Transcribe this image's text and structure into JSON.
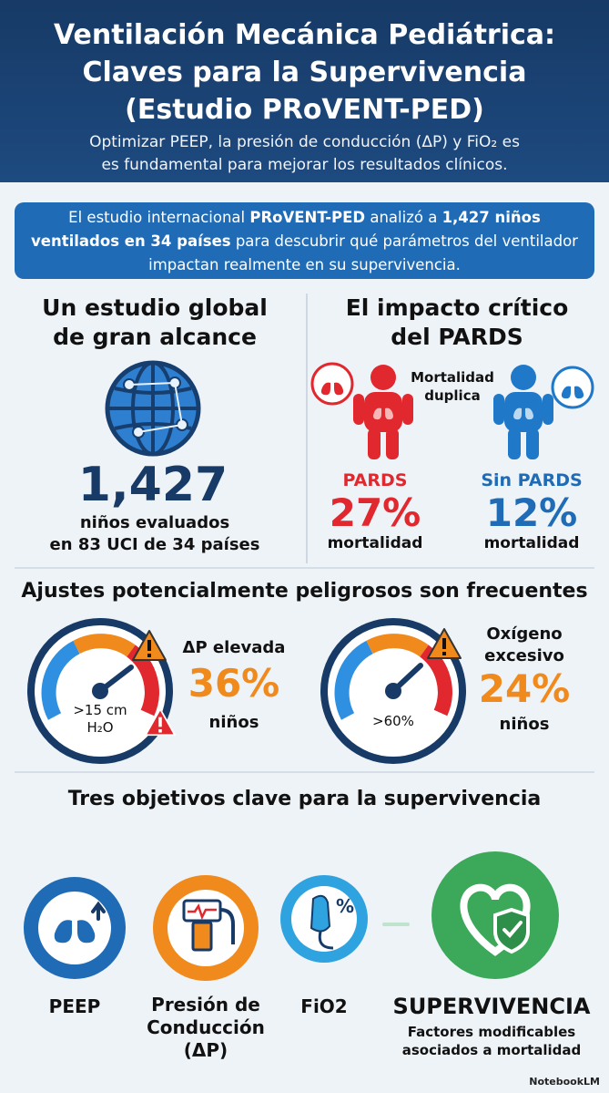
{
  "header": {
    "title_line1": "Ventilación Mecánica Pediátrica:",
    "title_line2": "Claves para la Supervivencia",
    "title_line3": "(Estudio PRoVENT-PED)",
    "subtitle_line1": "Optimizar PEEP, la presión de conducción (ΔP) y FiO₂ es",
    "subtitle_line2": "es fundamental para mejorar los resultados clínicos."
  },
  "intro": {
    "part1": "El estudio internacional ",
    "bold1": "PRoVENT-PED",
    "part2": " analizó a ",
    "bold2": "1,427 niños ventilados en 34 países",
    "part3": " para descubrir qué parámetros del ventilador impactan realmente en su supervivencia."
  },
  "global": {
    "title_line1": "Un estudio global",
    "title_line2": "de gran alcance",
    "number": "1,427",
    "caption_line1": "niños evaluados",
    "caption_line2": "en 83 UCI de 34 países"
  },
  "pards": {
    "title_line1": "El impacto crítico",
    "title_line2": "del PARDS",
    "note_line1": "Mortalidad",
    "note_line2": "duplica",
    "left_label": "PARDS",
    "left_value": "27%",
    "left_caption": "mortalidad",
    "right_label": "Sin PARDS",
    "right_value": "12%",
    "right_caption": "mortalidad"
  },
  "settings": {
    "title": "Ajustes potencialmente peligrosos son frecuentes",
    "gauge1_readout": ">15 cm",
    "gauge1_unit": "H₂O",
    "gauge1_label": "ΔP elevada",
    "gauge1_value": "36%",
    "gauge1_caption": "niños",
    "gauge2_readout": ">60%",
    "gauge2_label_line1": "Oxígeno",
    "gauge2_label_line2": "excesivo",
    "gauge2_value": "24%",
    "gauge2_caption": "niños"
  },
  "objectives": {
    "title": "Tres objetivos clave para la supervivencia",
    "peep_label": "PEEP",
    "dp_label_line1": "Presión de",
    "dp_label_line2": "Conducción",
    "dp_label_line3": "(ΔP)",
    "fio2_label": "FiO2",
    "fio2_icon_text": "%",
    "survival_label": "SUPERVIVENCIA",
    "survival_caption_line1": "Factores modificables",
    "survival_caption_line2": "asociados a mortalidad"
  },
  "footer": {
    "brand": "NotebookLM"
  },
  "colors": {
    "navy": "#173a66",
    "blue": "#1f6bb5",
    "red": "#e0282e",
    "orange": "#f08a1c",
    "green": "#3ca85a"
  },
  "icons": [
    "globe-icon",
    "lungs-icon",
    "child-icon",
    "gauge-icon",
    "warning-icon",
    "ventilator-icon",
    "oxygen-mask-icon",
    "heart-shield-icon"
  ]
}
